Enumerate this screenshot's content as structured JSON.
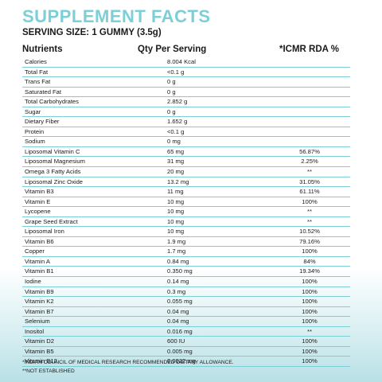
{
  "title": "SUPPLEMENT FACTS",
  "serving_size": "SERVING SIZE: 1 GUMMY (3.5g)",
  "headers": {
    "nutrients": "Nutrients",
    "qty": "Qty Per Serving",
    "rda": "*ICMR RDA %"
  },
  "rows": [
    {
      "name": "Calories",
      "qty": "8.004 Kcal",
      "rda": ""
    },
    {
      "name": "Total Fat",
      "qty": "<0.1 g",
      "rda": ""
    },
    {
      "name": "Trans Fat",
      "qty": "0 g",
      "rda": ""
    },
    {
      "name": "Saturated Fat",
      "qty": "0 g",
      "rda": ""
    },
    {
      "name": "Total Carbohydrates",
      "qty": "2.852 g",
      "rda": ""
    },
    {
      "name": "Sugar",
      "qty": "0 g",
      "rda": ""
    },
    {
      "name": "Dietary Fiber",
      "qty": "1.652 g",
      "rda": ""
    },
    {
      "name": "Protein",
      "qty": "<0.1 g",
      "rda": ""
    },
    {
      "name": "Sodium",
      "qty": "0 mg",
      "rda": ""
    },
    {
      "name": "Liposomal Vitamin C",
      "qty": "65 mg",
      "rda": "56.87%"
    },
    {
      "name": "Liposomal Magnesium",
      "qty": "31 mg",
      "rda": "2.25%"
    },
    {
      "name": "Omega 3 Fatty Acids",
      "qty": "20 mg",
      "rda": "**"
    },
    {
      "name": "Liposomal Zinc Oxide",
      "qty": "13.2 mg",
      "rda": "31.05%"
    },
    {
      "name": "Vitamin B3",
      "qty": "11 mg",
      "rda": "61.11%"
    },
    {
      "name": "Vitamin E",
      "qty": "10 mg",
      "rda": "100%"
    },
    {
      "name": "Lycopene",
      "qty": "10 mg",
      "rda": "**"
    },
    {
      "name": "Grape Seed Extract",
      "qty": "10 mg",
      "rda": "**"
    },
    {
      "name": "Liposomal Iron",
      "qty": "10 mg",
      "rda": "10.52%"
    },
    {
      "name": "Vitamin B6",
      "qty": "1.9 mg",
      "rda": "79.16%"
    },
    {
      "name": "Copper",
      "qty": "1.7 mg",
      "rda": "100%"
    },
    {
      "name": "Vitamin A",
      "qty": "0.84 mg",
      "rda": "84%"
    },
    {
      "name": "Vitamin B1",
      "qty": "0.350 mg",
      "rda": "19.34%"
    },
    {
      "name": "Iodine",
      "qty": "0.14 mg",
      "rda": "100%"
    },
    {
      "name": "Vitamin B9",
      "qty": "0.3 mg",
      "rda": "100%"
    },
    {
      "name": "Vitamin K2",
      "qty": "0.055 mg",
      "rda": "100%"
    },
    {
      "name": "Vitamin B7",
      "qty": "0.04 mg",
      "rda": "100%"
    },
    {
      "name": "Selenium",
      "qty": "0.04 mg",
      "rda": "100%"
    },
    {
      "name": "Inositol",
      "qty": "0.016 mg",
      "rda": "**"
    },
    {
      "name": "Vitamin D2",
      "qty": "600 IU",
      "rda": "100%"
    },
    {
      "name": "Vitamin B5",
      "qty": "0.005 mg",
      "rda": "100%"
    },
    {
      "name": "Vitamin B12",
      "qty": "0.0022 mg",
      "rda": "100%"
    }
  ],
  "footnotes": [
    "*Indian Council of Medical Research Recommended Dietary Allowance.",
    "**Not Established"
  ],
  "colors": {
    "title": "#7ccfd6",
    "divider": "#7ccfd6",
    "background_bottom": "#b8e0e6"
  }
}
